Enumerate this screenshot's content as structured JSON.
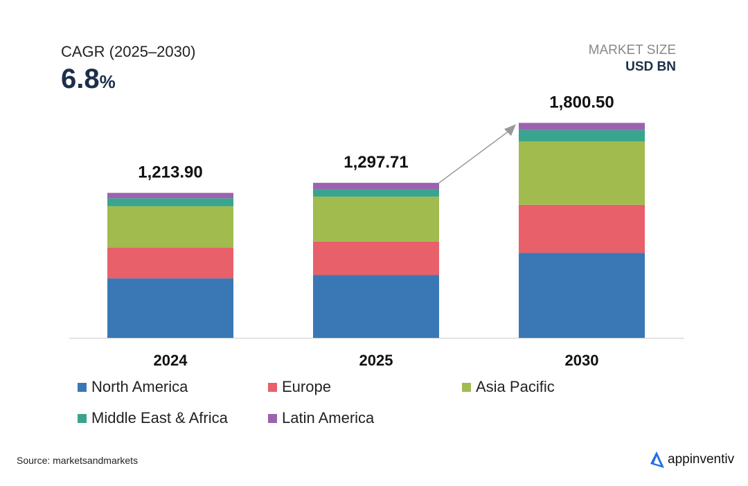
{
  "header": {
    "cagr_label": "CAGR (2025–2030)",
    "cagr_value": "6.8",
    "cagr_unit": "%",
    "market_size_label": "MARKET SIZE",
    "market_size_unit": "USD BN"
  },
  "chart_data": {
    "type": "bar",
    "stacked": true,
    "categories": [
      "2024",
      "2025",
      "2030"
    ],
    "totals": [
      "1,213.90",
      "1,297.71",
      "1,800.50"
    ],
    "total_values": [
      1213.9,
      1297.71,
      1800.5
    ],
    "series": [
      {
        "name": "North America",
        "color": "#3a78b5",
        "values": [
          498,
          527,
          712
        ]
      },
      {
        "name": "Europe",
        "color": "#e8606a",
        "values": [
          258,
          280,
          402
        ]
      },
      {
        "name": "Asia Pacific",
        "color": "#a1bb4f",
        "values": [
          346,
          375,
          530
        ]
      },
      {
        "name": "Middle East & Africa",
        "color": "#3aa58e",
        "values": [
          67,
          64,
          96
        ]
      },
      {
        "name": "Latin America",
        "color": "#9c62b0",
        "values": [
          45,
          52,
          60
        ]
      }
    ],
    "annotation": "arrow from 2025 to 2030",
    "legend_position": "bottom",
    "grid": false
  },
  "footer": {
    "source": "Source: marketsandmarkets",
    "brand": "appinventiv"
  }
}
